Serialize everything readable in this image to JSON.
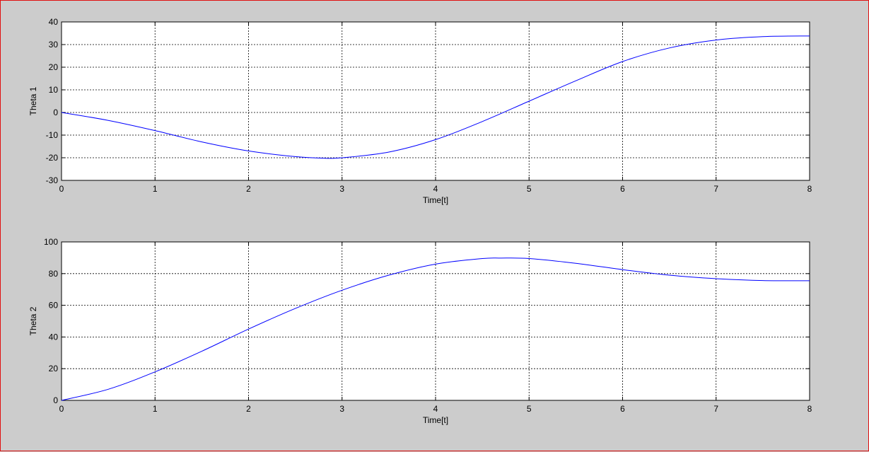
{
  "frame_color": "#e01010",
  "background_color": "#cccccc",
  "chart_data": [
    {
      "type": "line",
      "title": "",
      "xlabel": "Time[t]",
      "ylabel": "Theta 1",
      "xlim": [
        0,
        8
      ],
      "ylim": [
        -30,
        40
      ],
      "xticks": [
        0,
        1,
        2,
        3,
        4,
        5,
        6,
        7,
        8
      ],
      "yticks": [
        -30,
        -20,
        -10,
        0,
        10,
        20,
        30,
        40
      ],
      "grid": true,
      "line_color": "#0000ff",
      "series": [
        {
          "x": [
            0,
            0.5,
            1,
            1.5,
            2,
            2.5,
            2.8,
            3,
            3.5,
            4,
            4.5,
            5,
            5.5,
            6,
            6.5,
            7,
            7.5,
            8
          ],
          "y": [
            0,
            -3.5,
            -8,
            -13,
            -17,
            -19.5,
            -20.2,
            -20,
            -17.5,
            -12,
            -4,
            5,
            14,
            22.5,
            28.5,
            32,
            33.5,
            33.8
          ]
        }
      ]
    },
    {
      "type": "line",
      "title": "",
      "xlabel": "Time[t]",
      "ylabel": "Theta 2",
      "xlim": [
        0,
        8
      ],
      "ylim": [
        0,
        100
      ],
      "xticks": [
        0,
        1,
        2,
        3,
        4,
        5,
        6,
        7,
        8
      ],
      "yticks": [
        0,
        20,
        40,
        60,
        80,
        100
      ],
      "grid": true,
      "line_color": "#0000ff",
      "series": [
        {
          "x": [
            0,
            0.5,
            1,
            1.5,
            2,
            2.5,
            3,
            3.5,
            4,
            4.5,
            4.7,
            5,
            5.5,
            6,
            6.5,
            7,
            7.5,
            8
          ],
          "y": [
            0,
            7,
            18,
            31,
            45,
            58,
            69.5,
            79,
            86,
            89.5,
            89.8,
            89.5,
            86.5,
            82.5,
            79,
            76.8,
            75.6,
            75.5
          ]
        }
      ]
    }
  ]
}
